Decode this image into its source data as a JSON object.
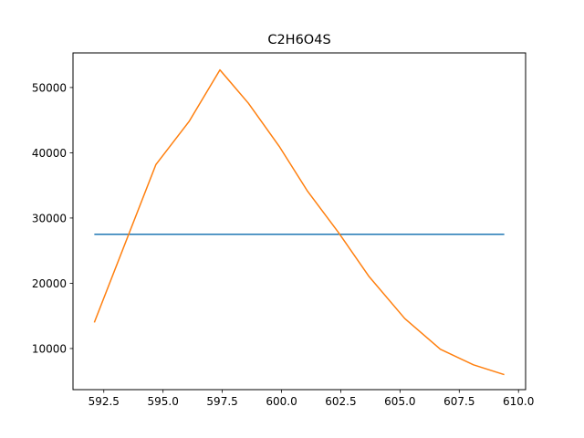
{
  "chart_data": {
    "type": "line",
    "title": "C2H6O4S",
    "xlabel": "",
    "ylabel": "",
    "xlim": [
      591.2,
      610.3
    ],
    "ylim": [
      3700,
      55300
    ],
    "xticks": [
      592.5,
      595.0,
      597.5,
      600.0,
      602.5,
      605.0,
      607.5,
      610.0
    ],
    "xtick_labels": [
      "592.5",
      "595.0",
      "597.5",
      "600.0",
      "602.5",
      "605.0",
      "607.5",
      "610.0"
    ],
    "yticks": [
      10000,
      20000,
      30000,
      40000,
      50000
    ],
    "ytick_labels": [
      "10000",
      "20000",
      "30000",
      "40000",
      "50000"
    ],
    "grid": false,
    "series": [
      {
        "color": "#1f77b4",
        "x": [
          592.1,
          609.4
        ],
        "y": [
          27500,
          27500
        ]
      },
      {
        "color": "#ff7f0e",
        "x": [
          592.1,
          594.7,
          596.1,
          597.4,
          598.6,
          599.9,
          601.1,
          602.4,
          603.7,
          605.2,
          606.7,
          608.1,
          609.4
        ],
        "y": [
          14000,
          38200,
          44800,
          52700,
          47600,
          41000,
          34100,
          27800,
          21000,
          14600,
          9900,
          7500,
          6000
        ]
      }
    ]
  }
}
